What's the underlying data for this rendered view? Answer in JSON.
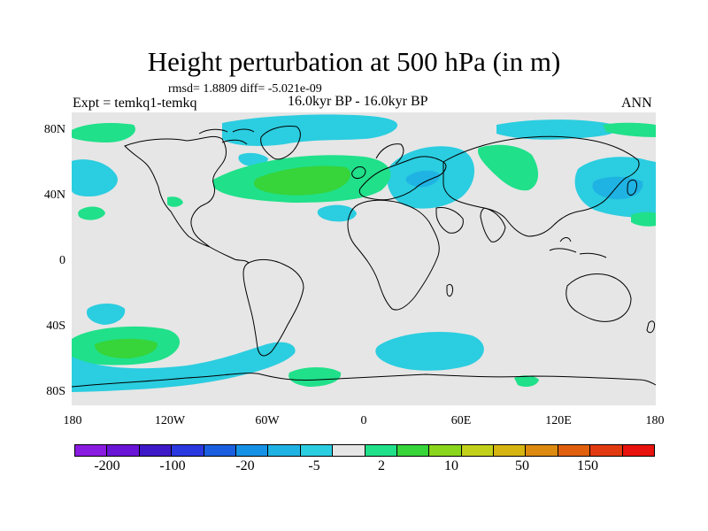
{
  "title": "Height perturbation at 500 hPa (in m)",
  "stats": "rmsd= 1.8809 diff= -5.021e-09",
  "left_label": "Expt = temkq1-temkq",
  "center_label": "16.0kyr BP - 16.0kyr BP",
  "right_label": "ANN",
  "y_ticks": [
    "80N",
    "40N",
    "0",
    "40S",
    "80S"
  ],
  "x_ticks": [
    "180",
    "120W",
    "60W",
    "0",
    "60E",
    "120E",
    "180"
  ],
  "colorbar": {
    "colors": [
      "#8a1be0",
      "#6a14d6",
      "#3e19c8",
      "#2a38e0",
      "#1a5fe0",
      "#1592e6",
      "#1fb3e3",
      "#2bcde0",
      "#e6e6e6",
      "#20e08a",
      "#37d43a",
      "#8ad61c",
      "#c2d01a",
      "#d6b412",
      "#dc8a10",
      "#e0600e",
      "#e23a10",
      "#e8120e"
    ],
    "labels": [
      "-200",
      "-100",
      "-20",
      "-5",
      "2",
      "10",
      "50",
      "150"
    ]
  },
  "map": {
    "ocean_color": "#e6e6e6",
    "coast_color": "#000000",
    "anomaly_colors": {
      "negative_weak": "#2bcde0",
      "negative_mid": "#1fb3e3",
      "positive_weak": "#20e08a",
      "positive_mid": "#37d43a"
    }
  }
}
